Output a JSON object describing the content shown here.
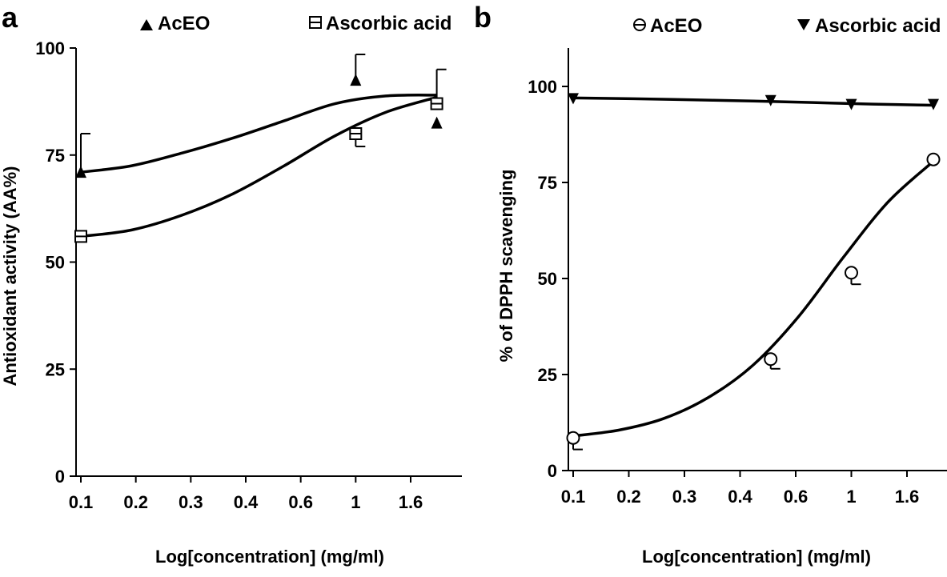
{
  "chart_data": [
    {
      "panel": "a",
      "type": "line",
      "xlabel": "Log[concentration] (mg/ml)",
      "ylabel": "Antioxidant activity (AA%)",
      "x_tick_labels": [
        "0.1",
        "0.2",
        "0.3",
        "0.4",
        "0.6",
        "1",
        "1.6"
      ],
      "y_ticks": [
        0,
        25,
        50,
        75,
        100
      ],
      "ylim": [
        0,
        100
      ],
      "legend": [
        "AcEO",
        "Ascorbic acid"
      ],
      "legend_placement": "top",
      "grid": false,
      "series": [
        {
          "name": "AcEO",
          "marker": "triangle-up",
          "x": [
            0.1,
            1.0,
            2.0
          ],
          "values": [
            71,
            92.5,
            82.5
          ],
          "error_up": [
            9,
            6,
            0
          ],
          "fit_values": [
            71,
            72.5,
            75.5,
            79,
            83,
            87,
            88.8,
            89
          ]
        },
        {
          "name": "Ascorbic acid",
          "marker": "square",
          "x": [
            0.1,
            1.0,
            2.0
          ],
          "values": [
            56,
            80,
            87
          ],
          "error_up": [
            0,
            0,
            8
          ],
          "error_down": [
            0,
            3,
            0
          ],
          "fit_values": [
            56,
            57.5,
            61,
            66,
            72.5,
            79.5,
            85,
            88.5
          ]
        }
      ]
    },
    {
      "panel": "b",
      "type": "line",
      "xlabel": "Log[concentration] (mg/ml)",
      "ylabel": "% of DPPH scavenging",
      "x_tick_labels": [
        "0.1",
        "0.2",
        "0.3",
        "0.4",
        "0.6",
        "1",
        "1.6"
      ],
      "y_ticks": [
        0,
        25,
        50,
        75,
        100
      ],
      "ylim": [
        0,
        110
      ],
      "legend": [
        "AcEO",
        "Ascorbic acid"
      ],
      "legend_placement": "top",
      "grid": false,
      "series": [
        {
          "name": "AcEO",
          "marker": "circle",
          "x": [
            0.1,
            0.5,
            1.0,
            2.0
          ],
          "values": [
            8.5,
            29,
            51.5,
            81
          ],
          "error_down": [
            3,
            2.5,
            3,
            0
          ],
          "fit_values": [
            9,
            10.5,
            13.5,
            19,
            27.5,
            40,
            55.5,
            70,
            80.5
          ]
        },
        {
          "name": "Ascorbic acid",
          "marker": "triangle-down",
          "x": [
            0.1,
            0.5,
            1.0,
            2.0
          ],
          "values": [
            97,
            96.5,
            95.5,
            95.5
          ],
          "fit_values": [
            97,
            96.8,
            96.5,
            96.2,
            95.8,
            95.4,
            95.1
          ]
        }
      ]
    }
  ]
}
